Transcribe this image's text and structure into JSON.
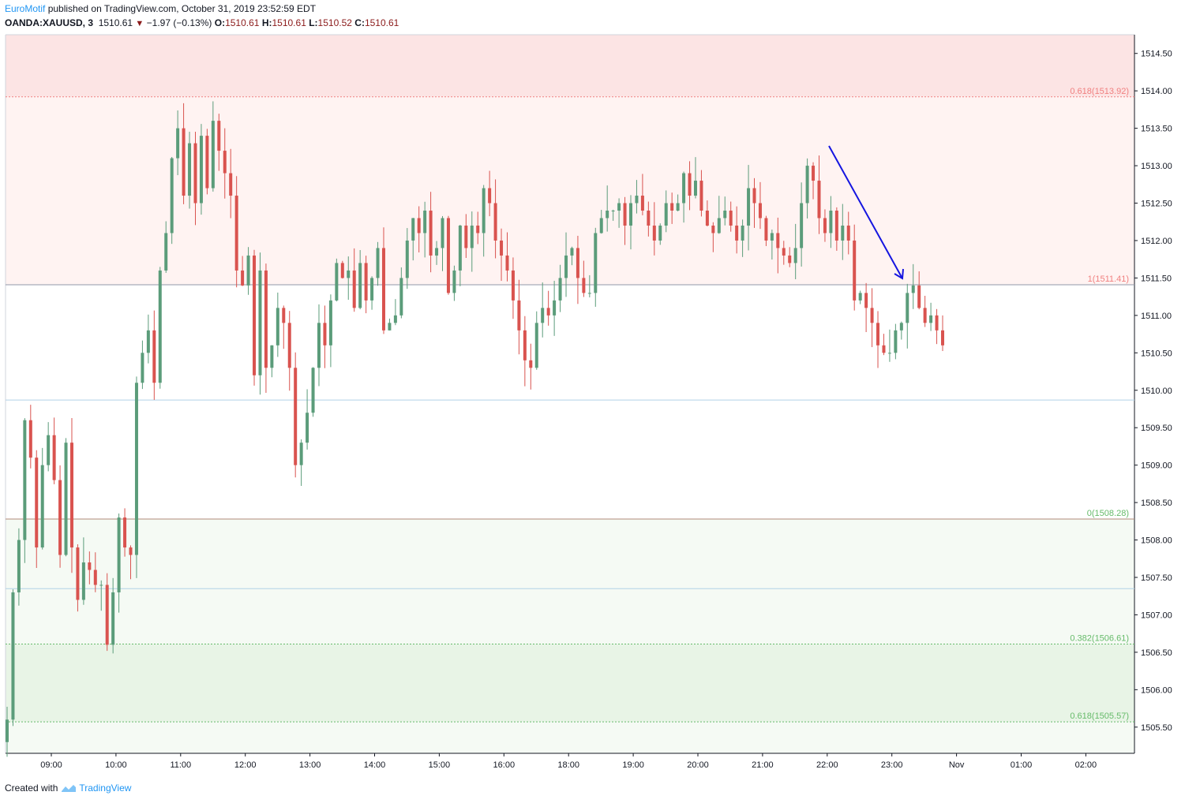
{
  "header": {
    "publisher": "EuroMotif",
    "published_text": " published on TradingView.com, October 31, 2019 23:52:59 EDT",
    "symbol": "OANDA:XAUUSD, 3",
    "last": "1510.61",
    "change": "−1.97 (−0.13%)",
    "o_label": "O:",
    "o_value": "1510.61",
    "h_label": "H:",
    "h_value": "1510.61",
    "l_label": "L:",
    "l_value": "1510.52",
    "c_label": "C:",
    "c_value": "1510.61"
  },
  "footer": {
    "created_with": "Created with",
    "brand": "TradingView"
  },
  "colors": {
    "up": "#5b9c7a",
    "down": "#d9534f",
    "arrow": "#1515e0",
    "zone_top": "#fce4e4",
    "zone_mid": "#fff3f2",
    "zone_green_light": "#f5faf4",
    "zone_green_dark": "#e8f4e6"
  },
  "chart_data": {
    "type": "candlestick",
    "symbol": "OANDA:XAUUSD",
    "interval": "3",
    "ylim": [
      1505.15,
      1514.75
    ],
    "y_ticks": [
      "1505.50",
      "1506.00",
      "1506.50",
      "1507.00",
      "1507.50",
      "1508.00",
      "1508.50",
      "1509.00",
      "1509.50",
      "1510.00",
      "1510.50",
      "1511.00",
      "1511.50",
      "1512.00",
      "1512.50",
      "1513.00",
      "1513.50",
      "1514.00",
      "1514.50"
    ],
    "x_ticks": [
      "09:00",
      "10:00",
      "11:00",
      "12:00",
      "13:00",
      "14:00",
      "15:00",
      "16:00",
      "18:00",
      "19:00",
      "20:00",
      "21:00",
      "22:00",
      "23:00",
      "Nov",
      "01:00",
      "02:00"
    ],
    "fib_levels": [
      {
        "label": "0.618(1513.92)",
        "price": 1513.92,
        "color": "#f08080"
      },
      {
        "label": "1(1511.41)",
        "price": 1511.41,
        "color": "#f08080"
      },
      {
        "label": "0(1508.28)",
        "price": 1508.28,
        "color": "#66bb6a"
      },
      {
        "label": "0.382(1506.61)",
        "price": 1506.61,
        "color": "#66bb6a"
      },
      {
        "label": "0.618(1505.57)",
        "price": 1505.57,
        "color": "#66bb6a"
      }
    ],
    "horizontal_lines": [
      1509.87,
      1507.35
    ],
    "arrow": {
      "from_time": "22:00+",
      "to_time": "23:03",
      "from_price": 1513.25,
      "to_price": 1511.45
    },
    "closes": [
      1505.6,
      1507.3,
      1508.0,
      1509.6,
      1509.1,
      1507.9,
      1509.0,
      1509.4,
      1508.8,
      1507.8,
      1509.3,
      1507.9,
      1507.2,
      1507.7,
      1507.6,
      1507.4,
      1507.4,
      1506.6,
      1507.3,
      1508.3,
      1507.9,
      1507.8,
      1510.1,
      1510.5,
      1510.8,
      1510.1,
      1511.6,
      1512.1,
      1513.1,
      1513.5,
      1512.6,
      1513.3,
      1512.5,
      1513.4,
      1512.7,
      1513.6,
      1513.2,
      1512.9,
      1512.6,
      1511.6,
      1511.4,
      1511.8,
      1510.2,
      1511.6,
      1510.3,
      1510.6,
      1511.1,
      1510.9,
      1510.3,
      1509.0,
      1509.3,
      1509.7,
      1510.3,
      1510.9,
      1510.6,
      1511.2,
      1511.7,
      1511.5,
      1511.6,
      1511.1,
      1511.7,
      1511.2,
      1511.5,
      1511.9,
      1510.8,
      1510.9,
      1511.0,
      1511.5,
      1512.0,
      1512.3,
      1512.1,
      1512.4,
      1511.8,
      1511.9,
      1512.3,
      1511.3,
      1511.6,
      1512.2,
      1511.9,
      1512.2,
      1512.1,
      1512.7,
      1512.5,
      1512.0,
      1511.8,
      1511.6,
      1511.2,
      1510.8,
      1510.4,
      1510.3,
      1510.9,
      1511.1,
      1511.0,
      1511.2,
      1511.5,
      1511.8,
      1511.9,
      1511.5,
      1511.3,
      1511.3,
      1512.1,
      1512.3,
      1512.4,
      1512.4,
      1512.5,
      1512.2,
      1512.5,
      1512.6,
      1512.4,
      1512.2,
      1512.0,
      1512.2,
      1512.5,
      1512.4,
      1512.5,
      1512.9,
      1512.6,
      1512.8,
      1512.4,
      1512.2,
      1512.1,
      1512.3,
      1512.4,
      1512.2,
      1512.0,
      1512.2,
      1512.7,
      1512.5,
      1512.3,
      1512.0,
      1512.1,
      1511.9,
      1511.8,
      1511.7,
      1511.9,
      1512.5,
      1513.0,
      1512.8,
      1512.3,
      1512.1,
      1512.4,
      1512.0,
      1512.2,
      1512.0,
      1511.2,
      1511.3,
      1511.1,
      1510.9,
      1510.6,
      1510.5,
      1510.5,
      1510.8,
      1510.9,
      1511.3,
      1511.4,
      1511.1,
      1510.9,
      1511.0,
      1510.8,
      1510.6
    ]
  }
}
